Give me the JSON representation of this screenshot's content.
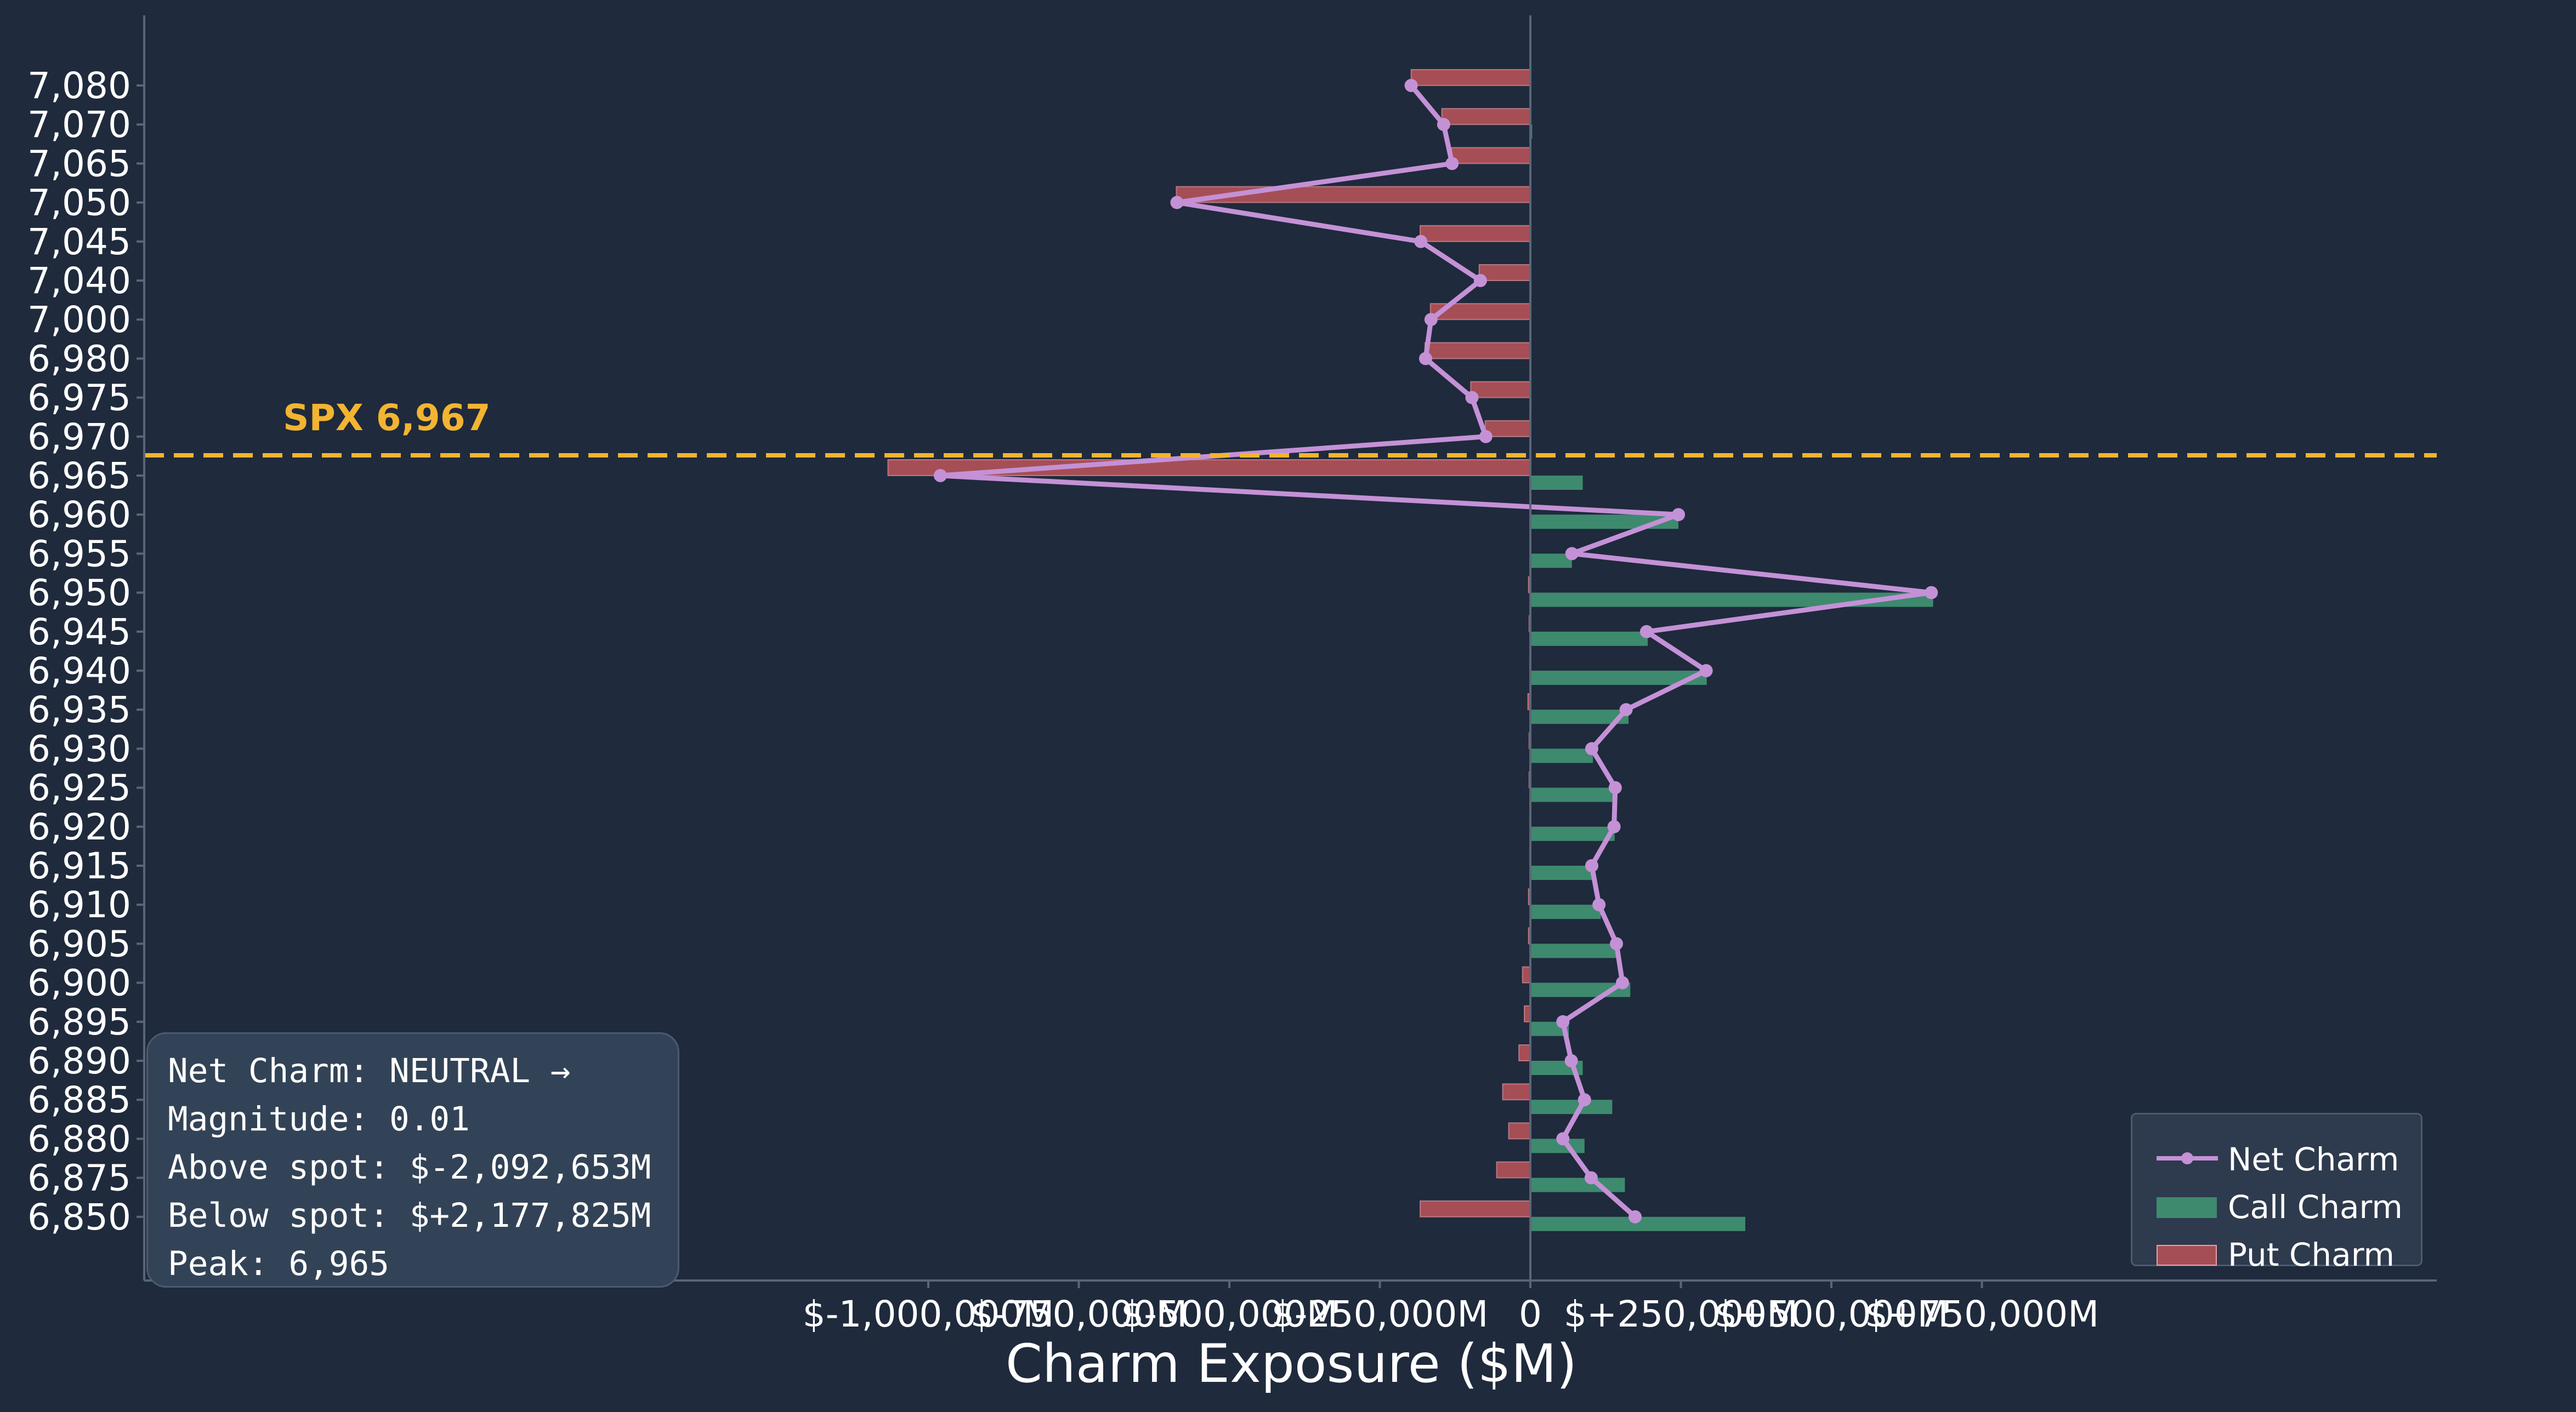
{
  "chart_data": {
    "type": "bar",
    "orientation": "horizontal",
    "xlabel": "Charm Exposure ($M)",
    "ylabel": "",
    "xlim": [
      -1200000,
      750000
    ],
    "xticks": [
      -1000000,
      -750000,
      -500000,
      -250000,
      0,
      250000,
      500000,
      750000
    ],
    "xtick_labels": [
      "$-1,000,000M",
      "$-750,000M",
      "$-500,000M",
      "$-250,000M",
      "0",
      "$+250,000M",
      "$+500,000M",
      "$+750,000M"
    ],
    "categories": [
      "7,080",
      "7,070",
      "7,065",
      "7,050",
      "7,045",
      "7,040",
      "7,000",
      "6,980",
      "6,975",
      "6,970",
      "6,965",
      "6,960",
      "6,955",
      "6,950",
      "6,945",
      "6,940",
      "6,935",
      "6,930",
      "6,925",
      "6,920",
      "6,915",
      "6,910",
      "6,905",
      "6,900",
      "6,895",
      "6,890",
      "6,885",
      "6,880",
      "6,875",
      "6,850"
    ],
    "series": [
      {
        "name": "Call Charm",
        "type": "bar",
        "color": "#3e8a6e",
        "values": [
          0,
          3000,
          1500,
          1000,
          500,
          2000,
          1000,
          1000,
          2000,
          1000,
          87000,
          246000,
          69000,
          669000,
          195000,
          293000,
          163000,
          104000,
          143000,
          140000,
          103000,
          117000,
          146000,
          166000,
          64000,
          87000,
          136000,
          90000,
          157000,
          357000
        ]
      },
      {
        "name": "Put Charm",
        "type": "bar",
        "color": "#a64e56",
        "values": [
          -198000,
          -147000,
          -131000,
          -588000,
          -183000,
          -85000,
          -166000,
          -175000,
          -99000,
          -75000,
          -1067000,
          0,
          0,
          -3000,
          -2000,
          -1000,
          -4000,
          -2000,
          -2000,
          -1000,
          -1000,
          -3000,
          -3000,
          -13000,
          -10000,
          -19000,
          -46000,
          -36000,
          -56000,
          -183000
        ]
      },
      {
        "name": "Net Charm",
        "type": "line",
        "color": "#c491d6",
        "values": [
          -198000,
          -144000,
          -130000,
          -587000,
          -182000,
          -83000,
          -165000,
          -174000,
          -97000,
          -74000,
          -980000,
          246000,
          69000,
          666000,
          193000,
          292000,
          159000,
          102000,
          141000,
          139000,
          102000,
          114000,
          143000,
          153000,
          54000,
          68000,
          90000,
          54000,
          101000,
          174000
        ]
      }
    ],
    "spot": {
      "value": 6967,
      "label": "SPX 6,967",
      "color": "#f2b431"
    },
    "legend_position": "lower-right",
    "grid": false
  },
  "info": {
    "lines": [
      "Net Charm: NEUTRAL →",
      "Magnitude: 0.01",
      "Above spot: $-2,092,653M",
      "Below spot: $+2,177,825M",
      "Peak: 6,965"
    ]
  },
  "legend": {
    "items": [
      {
        "label": "Net Charm",
        "color": "#c491d6"
      },
      {
        "label": "Call Charm",
        "color": "#3e8a6e"
      },
      {
        "label": "Put Charm",
        "color": "#a64e56"
      }
    ]
  },
  "colors": {
    "background": "#1f2a3c",
    "axis": "#5a6678",
    "text": "#ffffff"
  }
}
